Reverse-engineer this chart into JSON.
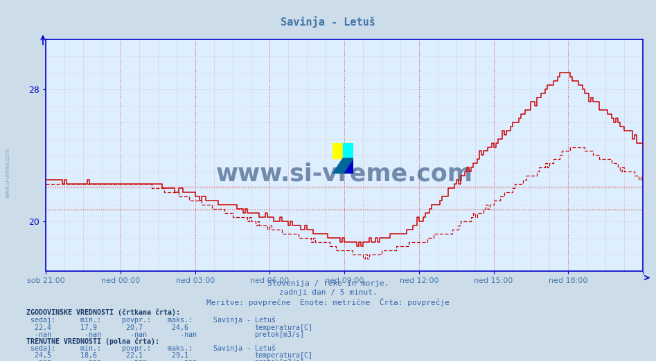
{
  "title": "Savinja - Letuš",
  "bg_color": "#ccdce8",
  "plot_bg_color": "#ddeeff",
  "title_color": "#4477aa",
  "axis_color": "#0000cc",
  "grid_color": "#dd4444",
  "line_color_solid": "#cc0000",
  "line_color_dashed": "#cc0000",
  "hline_color": "#dd4444",
  "xlabel_color": "#4477aa",
  "text_color": "#3366aa",
  "watermark_color": "#1a3a6a",
  "ylim": [
    17.0,
    31.0
  ],
  "yticks": [
    20,
    28
  ],
  "xlim": [
    0,
    288
  ],
  "xtick_positions": [
    0,
    36,
    72,
    108,
    144,
    180,
    216,
    252,
    288
  ],
  "xtick_labels": [
    "sob 21:00",
    "ned 00:00",
    "ned 03:00",
    "ned 06:00",
    "ned 09:00",
    "ned 12:00",
    "ned 15:00",
    "ned 18:00",
    ""
  ],
  "subtitle1": "Slovenija / reke in morje.",
  "subtitle2": "zadnji dan / 5 minut.",
  "subtitle3": "Meritve: povprečne  Enote: metrične  Črta: povprečje",
  "hline_solid": 22.1,
  "hline_dashed": 20.7,
  "n_points": 289
}
